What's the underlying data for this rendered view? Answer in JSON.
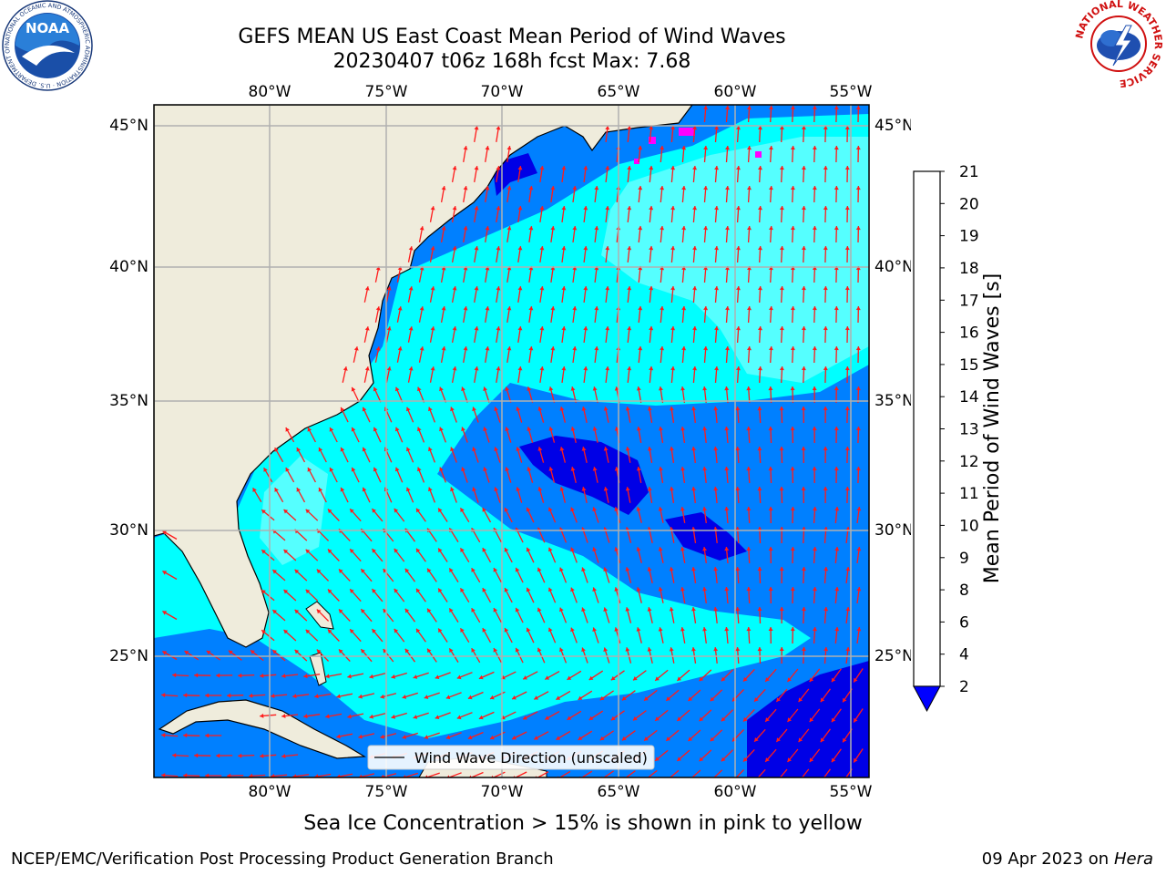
{
  "header": {
    "title_line1": "GEFS MEAN US East Coast Mean Period of Wind Waves",
    "title_line2": "20230407 t06z 168h fcst   Max: 7.68"
  },
  "logos": {
    "noaa": "NOAA",
    "nws_ring": "NATIONAL WEATHER SERVICE",
    "noaa_ring": "NATIONAL OCEANIC AND ATMOSPHERIC ADMINISTRATION · U.S. DEPARTMENT OF COMMERCE"
  },
  "map": {
    "lon_labels": [
      "80°W",
      "75°W",
      "70°W",
      "65°W",
      "60°W",
      "55°W"
    ],
    "lat_labels": [
      "45°N",
      "40°N",
      "35°N",
      "30°N",
      "25°N"
    ],
    "legend_label": "Wind Wave Direction (unscaled)",
    "colors": {
      "land": "#efecdc",
      "period_2_4": "#0080ff",
      "period_0_2": "#0000e6",
      "period_4_6": "#00ffff",
      "period_6_8": "#55ffff",
      "arrow": "#ff1a1a",
      "grid": "#b0b0b0",
      "sea_ice": "#ff00ff"
    }
  },
  "colorbar": {
    "label": "Mean Period of Wind Waves [s]",
    "ticks": [
      "2",
      "4",
      "6",
      "8",
      "9",
      "10",
      "11",
      "12",
      "13",
      "14",
      "15",
      "16",
      "17",
      "18",
      "19",
      "20",
      "21"
    ],
    "colors": [
      "#0080ff",
      "#00ffff",
      "#55ffff",
      "#aaffff",
      "#55ff80",
      "#00ff00",
      "#55dd00",
      "#aaff00",
      "#ccff00",
      "#eeff00",
      "#ffff00",
      "#ffdd00",
      "#ffb000",
      "#ff8800",
      "#ff5500",
      "#ff2200"
    ],
    "under_color": "#0000ff",
    "over_color": "#ff0000"
  },
  "footer": {
    "note": "Sea Ice Concentration > 15% is shown in pink to yellow",
    "left": "NCEP/EMC/Verification Post Processing Product Generation Branch",
    "right_date": "09 Apr 2023 on",
    "right_host": "Hera"
  }
}
